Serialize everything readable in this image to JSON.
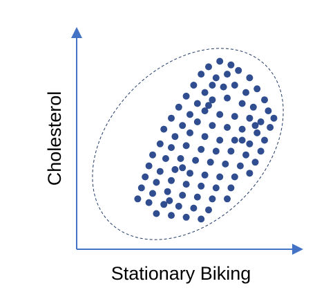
{
  "chart_data": {
    "type": "scatter",
    "title": "",
    "xlabel": "Stationary Biking",
    "ylabel": "Cholesterol",
    "xlim": [
      0,
      100
    ],
    "ylim": [
      0,
      100
    ],
    "grid": false,
    "legend": "none",
    "show_tick_labels": false,
    "cluster_outline": "dashed-ellipse",
    "colors": {
      "axis": "#4472C4",
      "point": "#2F4D8F",
      "outline": "#1F3864",
      "text": "#000000"
    },
    "points": [
      [
        60,
        90
      ],
      [
        66,
        93
      ],
      [
        72,
        91
      ],
      [
        56,
        86
      ],
      [
        64,
        84
      ],
      [
        70,
        86
      ],
      [
        76,
        88
      ],
      [
        82,
        84
      ],
      [
        52,
        80
      ],
      [
        58,
        76
      ],
      [
        68,
        79
      ],
      [
        74,
        80
      ],
      [
        80,
        76
      ],
      [
        86,
        78
      ],
      [
        90,
        72
      ],
      [
        48,
        74
      ],
      [
        54,
        70
      ],
      [
        62,
        72
      ],
      [
        70,
        73
      ],
      [
        78,
        70
      ],
      [
        84,
        68
      ],
      [
        92,
        66
      ],
      [
        44,
        68
      ],
      [
        50,
        64
      ],
      [
        58,
        66
      ],
      [
        66,
        64
      ],
      [
        74,
        63
      ],
      [
        82,
        62
      ],
      [
        88,
        60
      ],
      [
        95,
        62
      ],
      [
        40,
        62
      ],
      [
        46,
        58
      ],
      [
        54,
        60
      ],
      [
        62,
        58
      ],
      [
        70,
        57
      ],
      [
        78,
        56
      ],
      [
        86,
        54
      ],
      [
        93,
        57
      ],
      [
        36,
        56
      ],
      [
        42,
        52
      ],
      [
        50,
        54
      ],
      [
        58,
        52
      ],
      [
        66,
        50
      ],
      [
        74,
        50
      ],
      [
        82,
        48
      ],
      [
        90,
        50
      ],
      [
        34,
        48
      ],
      [
        40,
        46
      ],
      [
        48,
        47
      ],
      [
        56,
        45
      ],
      [
        64,
        44
      ],
      [
        72,
        44
      ],
      [
        80,
        42
      ],
      [
        88,
        44
      ],
      [
        30,
        42
      ],
      [
        37,
        40
      ],
      [
        45,
        40
      ],
      [
        53,
        39
      ],
      [
        61,
        38
      ],
      [
        69,
        37
      ],
      [
        77,
        36
      ],
      [
        85,
        38
      ],
      [
        28,
        36
      ],
      [
        34,
        33
      ],
      [
        42,
        34
      ],
      [
        50,
        32
      ],
      [
        58,
        31
      ],
      [
        66,
        30
      ],
      [
        74,
        30
      ],
      [
        82,
        32
      ],
      [
        26,
        30
      ],
      [
        32,
        27
      ],
      [
        40,
        28
      ],
      [
        48,
        26
      ],
      [
        56,
        25
      ],
      [
        64,
        24
      ],
      [
        72,
        24
      ],
      [
        24,
        24
      ],
      [
        30,
        21
      ],
      [
        38,
        22
      ],
      [
        46,
        20
      ],
      [
        54,
        19
      ],
      [
        62,
        18
      ],
      [
        70,
        18
      ],
      [
        28,
        16
      ],
      [
        36,
        15
      ],
      [
        44,
        14
      ],
      [
        52,
        13
      ],
      [
        60,
        12
      ],
      [
        40,
        9
      ],
      [
        48,
        8
      ],
      [
        56,
        7
      ],
      [
        22,
        18
      ],
      [
        32,
        10
      ],
      [
        62,
        80
      ],
      [
        60,
        69
      ],
      [
        46,
        35
      ],
      [
        39,
        17
      ],
      [
        85,
        58
      ],
      [
        78,
        50
      ]
    ]
  }
}
